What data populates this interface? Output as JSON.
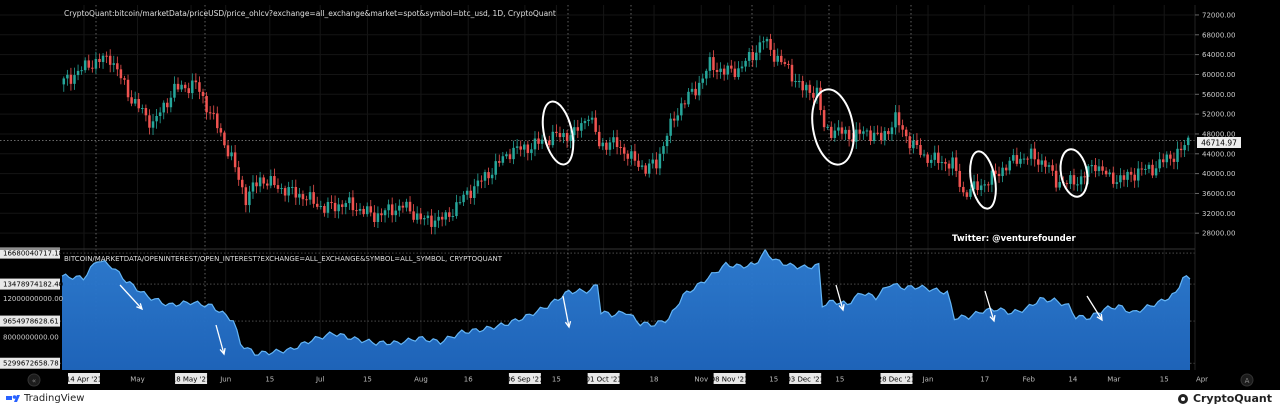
{
  "header": {
    "price_title": "CryptoQuant:bitcoin/marketData/priceUSD/price_ohlcv?exchange=all_exchange&market=spot&symbol=btc_usd, 1D, CryptoQuant",
    "oi_title": "BITCOIN/MARKETDATA/OPENINTEREST/OPEN_INTEREST?EXCHANGE=ALL_EXCHANGE&SYMBOL=ALL_SYMBOL, CRYPTOQUANT"
  },
  "annotation": {
    "twitter": "Twitter: @venturefounder"
  },
  "footer": {
    "left_brand": "TradingView",
    "right_brand": "CryptoQuant"
  },
  "colors": {
    "up": "#26a69a",
    "down": "#ef5350",
    "oi_line": "#64b5f6",
    "oi_fill_top": "#2f7fd6",
    "oi_fill_bottom": "#1e63b8",
    "background": "#000000"
  },
  "chart_data": [
    {
      "type": "candlestick",
      "title": "CryptoQuant:bitcoin/marketData/priceUSD/price_ohlcv?exchange=all_exchange&market=spot&symbol=btc_usd, 1D, CryptoQuant",
      "x": [
        "14 Apr '21",
        "May",
        "18 May '21",
        "Jun",
        "15",
        "Jul",
        "15",
        "Aug",
        "16",
        "06 Sep '21",
        "15",
        "01 Oct '21",
        "18",
        "Nov",
        "08 Nov '21",
        "15",
        "03 Dec '21",
        "15",
        "28 Dec '21",
        "Jan",
        "17",
        "Feb",
        "14",
        "Mar",
        "15",
        "Apr"
      ],
      "y_ticks": [
        "72000.00",
        "68000.00",
        "64000.00",
        "60000.00",
        "56000.00",
        "52000.00",
        "48000.00",
        "44000.00",
        "40000.00",
        "36000.00",
        "32000.00",
        "28000.00"
      ],
      "ylim": [
        25000,
        73000
      ],
      "last_price_label": "46714.97",
      "last_price": 46714.97,
      "price_path": [
        [
          0,
          58000
        ],
        [
          8,
          62000
        ],
        [
          14,
          63500
        ],
        [
          20,
          55000
        ],
        [
          26,
          50000
        ],
        [
          32,
          57000
        ],
        [
          38,
          58000
        ],
        [
          44,
          49500
        ],
        [
          48,
          43000
        ],
        [
          52,
          35000
        ],
        [
          56,
          39000
        ],
        [
          62,
          37000
        ],
        [
          68,
          35500
        ],
        [
          74,
          33000
        ],
        [
          80,
          34000
        ],
        [
          88,
          31500
        ],
        [
          96,
          33500
        ],
        [
          102,
          30500
        ],
        [
          108,
          31000
        ],
        [
          114,
          36000
        ],
        [
          120,
          40000
        ],
        [
          126,
          44500
        ],
        [
          132,
          45500
        ],
        [
          138,
          47500
        ],
        [
          144,
          48000
        ],
        [
          148,
          52000
        ],
        [
          151,
          46000
        ],
        [
          156,
          46000
        ],
        [
          160,
          43000
        ],
        [
          164,
          41000
        ],
        [
          167,
          42000
        ],
        [
          170,
          48000
        ],
        [
          174,
          54000
        ],
        [
          178,
          57000
        ],
        [
          182,
          62000
        ],
        [
          186,
          60500
        ],
        [
          190,
          61000
        ],
        [
          194,
          64000
        ],
        [
          197,
          67000
        ],
        [
          200,
          64000
        ],
        [
          204,
          61000
        ],
        [
          208,
          57000
        ],
        [
          212,
          56500
        ],
        [
          214,
          49000
        ],
        [
          218,
          48500
        ],
        [
          222,
          47500
        ],
        [
          226,
          48500
        ],
        [
          230,
          47000
        ],
        [
          234,
          51000
        ],
        [
          238,
          46500
        ],
        [
          242,
          43500
        ],
        [
          246,
          42500
        ],
        [
          250,
          42000
        ],
        [
          253,
          36000
        ],
        [
          256,
          37000
        ],
        [
          260,
          38500
        ],
        [
          264,
          41000
        ],
        [
          268,
          43000
        ],
        [
          272,
          43500
        ],
        [
          276,
          42000
        ],
        [
          279,
          38500
        ],
        [
          282,
          38000
        ],
        [
          286,
          39000
        ],
        [
          290,
          42000
        ],
        [
          294,
          39000
        ],
        [
          298,
          39000
        ],
        [
          302,
          40500
        ],
        [
          306,
          41000
        ],
        [
          310,
          43000
        ],
        [
          314,
          44500
        ],
        [
          316,
          46700
        ]
      ]
    },
    {
      "type": "area",
      "title": "BITCOIN/MARKETDATA/OPENINTEREST/OPEN_INTEREST?EXCHANGE=ALL_EXCHANGE&SYMBOL=ALL_SYMBOL, CRYPTOQUANT",
      "y_ticks": [
        "16680040717.18",
        "13478974182.40",
        "12000000000.00",
        "9654978628.61",
        "8000000000.00",
        "5299672658.78"
      ],
      "ylim": [
        4600000000,
        17000000000
      ],
      "oi_path": [
        [
          0,
          14300000000
        ],
        [
          6,
          14100000000
        ],
        [
          10,
          16000000000
        ],
        [
          14,
          15300000000
        ],
        [
          18,
          13800000000
        ],
        [
          24,
          12200000000
        ],
        [
          30,
          11300000000
        ],
        [
          36,
          11600000000
        ],
        [
          42,
          11200000000
        ],
        [
          48,
          9700000000
        ],
        [
          50,
          7300000000
        ],
        [
          54,
          6300000000
        ],
        [
          58,
          6400000000
        ],
        [
          64,
          6700000000
        ],
        [
          70,
          7700000000
        ],
        [
          76,
          8400000000
        ],
        [
          82,
          7800000000
        ],
        [
          88,
          7400000000
        ],
        [
          94,
          7400000000
        ],
        [
          100,
          7900000000
        ],
        [
          106,
          7500000000
        ],
        [
          112,
          8500000000
        ],
        [
          118,
          8800000000
        ],
        [
          124,
          9300000000
        ],
        [
          130,
          10100000000
        ],
        [
          136,
          11200000000
        ],
        [
          142,
          12700000000
        ],
        [
          148,
          12800000000
        ],
        [
          150,
          13500000000
        ],
        [
          151,
          10600000000
        ],
        [
          154,
          10300000000
        ],
        [
          158,
          10600000000
        ],
        [
          162,
          9400000000
        ],
        [
          166,
          9300000000
        ],
        [
          170,
          9900000000
        ],
        [
          174,
          12300000000
        ],
        [
          178,
          13300000000
        ],
        [
          182,
          14400000000
        ],
        [
          186,
          15500000000
        ],
        [
          190,
          15300000000
        ],
        [
          194,
          15500000000
        ],
        [
          197,
          16800000000
        ],
        [
          200,
          15900000000
        ],
        [
          204,
          15400000000
        ],
        [
          208,
          15200000000
        ],
        [
          212,
          15400000000
        ],
        [
          213,
          11300000000
        ],
        [
          216,
          11700000000
        ],
        [
          220,
          11400000000
        ],
        [
          224,
          12600000000
        ],
        [
          228,
          12100000000
        ],
        [
          232,
          13500000000
        ],
        [
          236,
          13100000000
        ],
        [
          240,
          13200000000
        ],
        [
          244,
          12900000000
        ],
        [
          248,
          12600000000
        ],
        [
          250,
          10000000000
        ],
        [
          254,
          10100000000
        ],
        [
          258,
          10700000000
        ],
        [
          262,
          10900000000
        ],
        [
          266,
          10500000000
        ],
        [
          270,
          10900000000
        ],
        [
          274,
          11900000000
        ],
        [
          278,
          11800000000
        ],
        [
          282,
          11200000000
        ],
        [
          284,
          10100000000
        ],
        [
          288,
          10000000000
        ],
        [
          292,
          10900000000
        ],
        [
          296,
          11200000000
        ],
        [
          300,
          10500000000
        ],
        [
          304,
          11100000000
        ],
        [
          308,
          11700000000
        ],
        [
          312,
          12500000000
        ],
        [
          314,
          14200000000
        ],
        [
          316,
          14000000000
        ]
      ]
    }
  ]
}
